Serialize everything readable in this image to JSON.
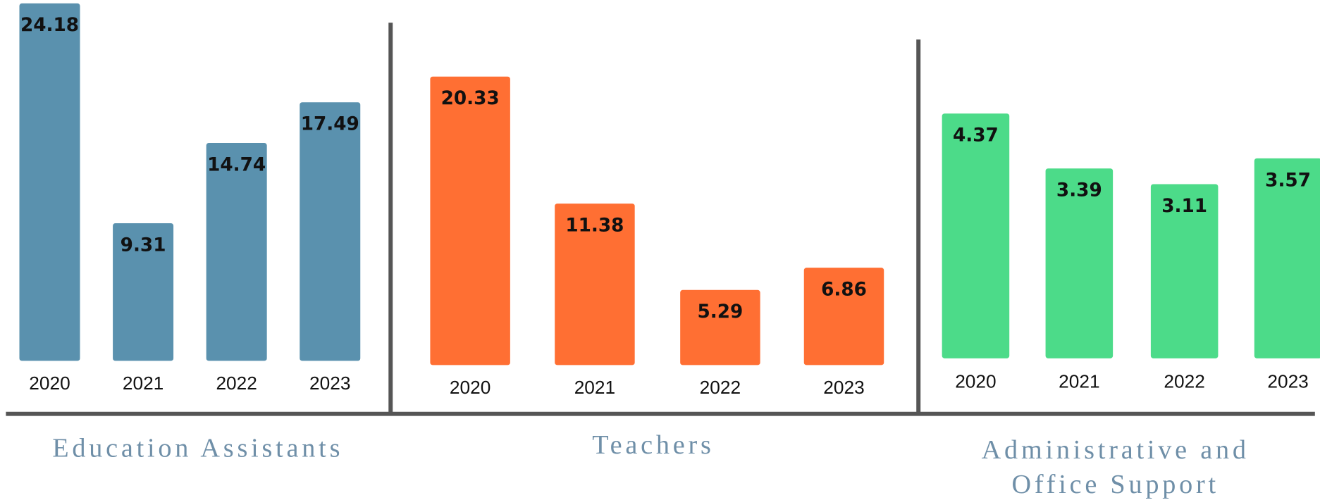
{
  "chart_data": [
    {
      "type": "bar",
      "title": "Education Assistants",
      "categories": [
        "2020",
        "2021",
        "2022",
        "2023"
      ],
      "values": [
        24.18,
        9.31,
        14.74,
        17.49
      ],
      "color": "#5a91ae"
    },
    {
      "type": "bar",
      "title": "Teachers",
      "categories": [
        "2020",
        "2021",
        "2022",
        "2023"
      ],
      "values": [
        20.33,
        11.38,
        5.29,
        6.86
      ],
      "color": "#ff6f33"
    },
    {
      "type": "bar",
      "title": "Administrative and Office Support",
      "categories": [
        "2020",
        "2021",
        "2022",
        "2023"
      ],
      "values": [
        4.37,
        3.39,
        3.11,
        3.57
      ],
      "color": "#4cdb89"
    }
  ]
}
